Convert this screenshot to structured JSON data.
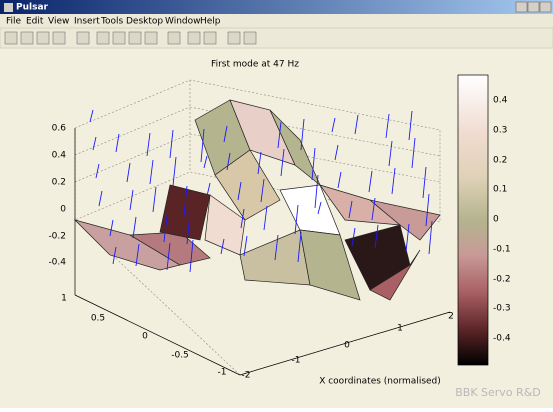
{
  "window": {
    "title": "Pulsar"
  },
  "menu": [
    "File",
    "Edit",
    "View",
    "Insert",
    "Tools",
    "Desktop",
    "Window",
    "Help"
  ],
  "plot": {
    "title": "First mode at 47 Hz",
    "z_ticks": [
      0.6,
      0.4,
      0.2,
      0,
      -0.2,
      -0.4
    ],
    "y_ticks": [
      1,
      0.5,
      0,
      -0.5,
      -1
    ],
    "x_ticks": [
      -2,
      -1,
      0,
      1,
      2
    ],
    "x_label": "X coordinates (normalised)",
    "colorbar_ticks": [
      0.4,
      0.3,
      0.2,
      0.1,
      0,
      -0.1,
      -0.2,
      -0.3,
      -0.4
    ]
  },
  "watermark": "BBK Servo R&D"
}
